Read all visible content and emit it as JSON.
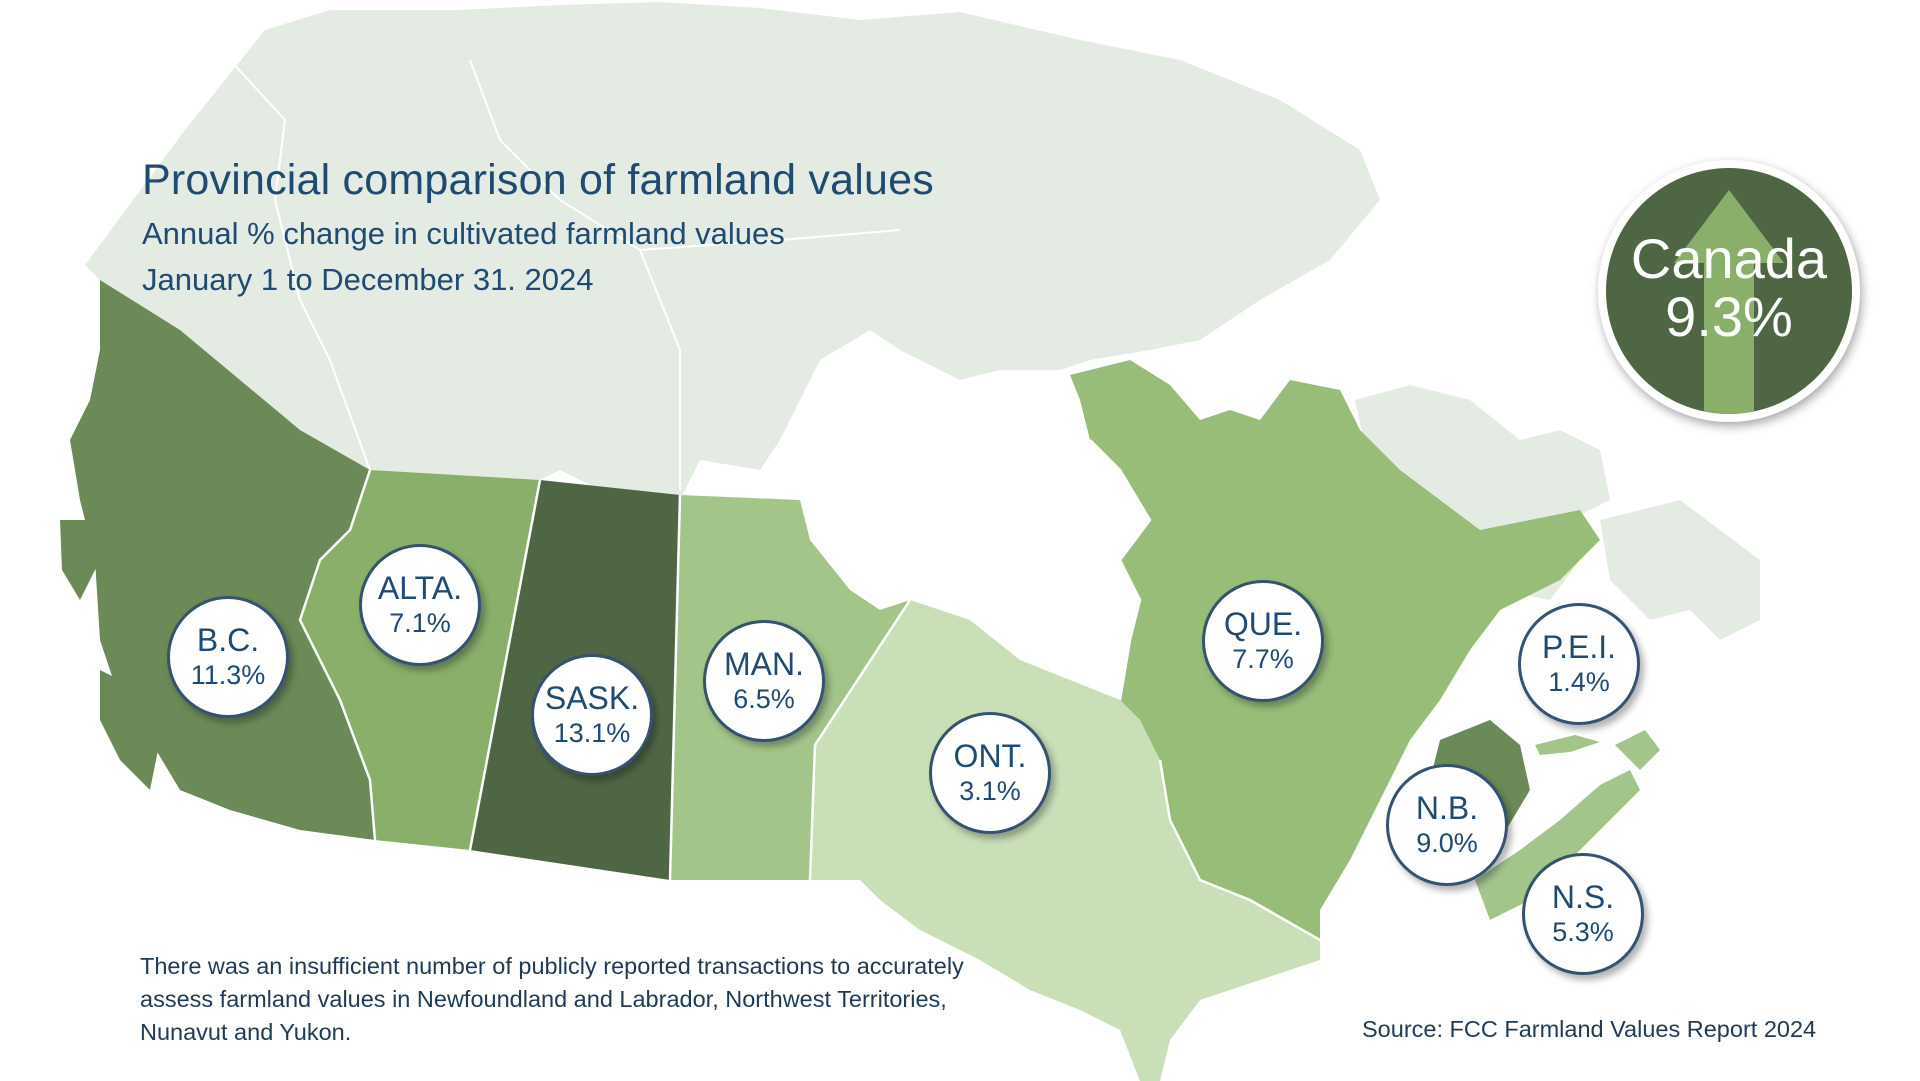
{
  "title": "Provincial comparison of farmland values",
  "subtitle": "Annual % change in cultivated farmland values",
  "date_range": "January 1 to December 31. 2024",
  "national": {
    "label": "Canada",
    "value": "9.3%",
    "direction": "up-arrow-icon"
  },
  "colors": {
    "title": "#1f4a72",
    "north": "#e4ebe3",
    "bc": "#6b8a57",
    "alta": "#8aaf6a",
    "sask": "#4f6645",
    "man": "#a3c589",
    "ont": "#c9dfb7",
    "que": "#98bd78",
    "nb": "#6b8a57",
    "pei": "#a3c589",
    "ns": "#a3c589",
    "nl": "#e4ebe3",
    "badge": "#4f6645",
    "arrow": "#8aaf6a"
  },
  "provinces": [
    {
      "id": "bc",
      "abbr": "B.C.",
      "value": "11.3%"
    },
    {
      "id": "alta",
      "abbr": "ALTA.",
      "value": "7.1%"
    },
    {
      "id": "sask",
      "abbr": "SASK.",
      "value": "13.1%"
    },
    {
      "id": "man",
      "abbr": "MAN.",
      "value": "6.5%"
    },
    {
      "id": "ont",
      "abbr": "ONT.",
      "value": "3.1%"
    },
    {
      "id": "que",
      "abbr": "QUE.",
      "value": "7.7%"
    },
    {
      "id": "pei",
      "abbr": "P.E.I.",
      "value": "1.4%"
    },
    {
      "id": "nb",
      "abbr": "N.B.",
      "value": "9.0%"
    },
    {
      "id": "ns",
      "abbr": "N.S.",
      "value": "5.3%"
    }
  ],
  "note_lines": [
    "There was an insufficient number of publicly  reported transactions to accurately",
    "assess farmland values in Newfoundland and Labrador, Northwest Territories,",
    "Nunavut and Yukon."
  ],
  "source": "Source: FCC Farmland Values Report 2024"
}
